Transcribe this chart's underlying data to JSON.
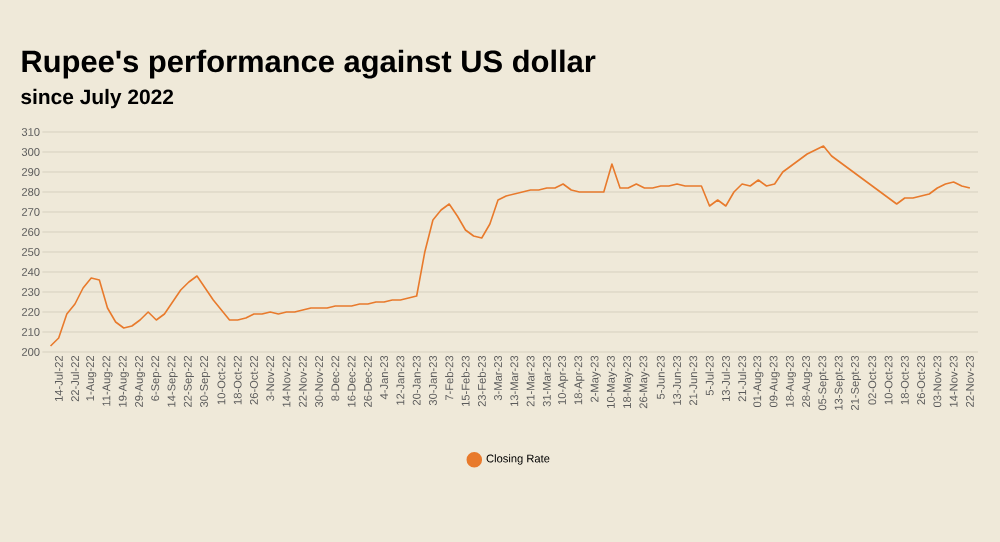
{
  "chart_data": {
    "type": "line",
    "title": "Rupee's performance against US dollar",
    "subtitle": "since July 2022",
    "categories": [
      null,
      "14-Jul-22",
      null,
      "22-Jul-22",
      null,
      "1-Aug-22",
      null,
      "11-Aug-22",
      null,
      "19-Aug-22",
      null,
      "29-Aug-22",
      null,
      "6-Sep-22",
      null,
      "14-Sep-22",
      null,
      "22-Sep-22",
      null,
      "30-Sep-22",
      null,
      "10-Oct-22",
      null,
      "18-Oct-22",
      null,
      "26-Oct-22",
      null,
      "3-Nov-22",
      null,
      "14-Nov-22",
      null,
      "22-Nov-22",
      null,
      "30-Nov-22",
      null,
      "8-Dec-22",
      null,
      "16-Dec-22",
      null,
      "26-Dec-22",
      null,
      "4-Jan-23",
      null,
      "12-Jan-23",
      null,
      "20-Jan-23",
      null,
      "30-Jan-23",
      null,
      "7-Feb-23",
      null,
      "15-Feb-23",
      null,
      "23-Feb-23",
      null,
      "3-Mar-23",
      null,
      "13-Mar-23",
      null,
      "21-Mar-23",
      null,
      "31-Mar-23",
      null,
      "10-Apr-23",
      null,
      "18-Apr-23",
      null,
      "2-May-23",
      null,
      "10-May-23",
      null,
      "18-May-23",
      null,
      "26-May-23",
      null,
      "5-Jun-23",
      null,
      "13-Jun-23",
      null,
      "21-Jun-23",
      null,
      "5-Jul-23",
      null,
      "13-Jul-23",
      null,
      "21-Jul-23",
      null,
      "01-Aug-23",
      null,
      "09-Aug-23",
      null,
      "18-Aug-23",
      null,
      "28-Aug-23",
      null,
      "05-Sept-23",
      null,
      "13-Sept-23",
      null,
      "21-Sept-23",
      null,
      "02-Oct-23",
      null,
      "10-Oct-23",
      null,
      "18-Oct-23",
      null,
      "26-Oct-23",
      null,
      "03-Nov-23",
      null,
      "14-Nov-23",
      null,
      "22-Nov-23"
    ],
    "series": [
      {
        "name": "Closing Rate",
        "color": "#e87a2c",
        "values": [
          203,
          207,
          219,
          224,
          232,
          237,
          236,
          222,
          215,
          212,
          213,
          216,
          220,
          216,
          219,
          225,
          231,
          235,
          238,
          232,
          226,
          221,
          216,
          216,
          217,
          219,
          219,
          220,
          219,
          220,
          220,
          221,
          222,
          222,
          222,
          223,
          223,
          223,
          224,
          224,
          225,
          225,
          226,
          226,
          227,
          228,
          250,
          266,
          271,
          274,
          268,
          261,
          258,
          257,
          264,
          276,
          278,
          279,
          280,
          281,
          281,
          282,
          282,
          284,
          281,
          280,
          280,
          280,
          280,
          294,
          282,
          282,
          284,
          282,
          282,
          283,
          283,
          284,
          283,
          283,
          283,
          273,
          276,
          273,
          280,
          284,
          283,
          286,
          283,
          284,
          290,
          293,
          296,
          299,
          301,
          303,
          298,
          295,
          292,
          289,
          286,
          283,
          280,
          277,
          274,
          277,
          277,
          278,
          279,
          282,
          284,
          285,
          283,
          282
        ]
      }
    ],
    "ylim": [
      200,
      310
    ],
    "yticks": [
      200,
      210,
      220,
      230,
      240,
      250,
      260,
      270,
      280,
      290,
      300,
      310
    ],
    "grid": "y",
    "legend": "bottom",
    "marker": "none",
    "line_style": "solid"
  }
}
